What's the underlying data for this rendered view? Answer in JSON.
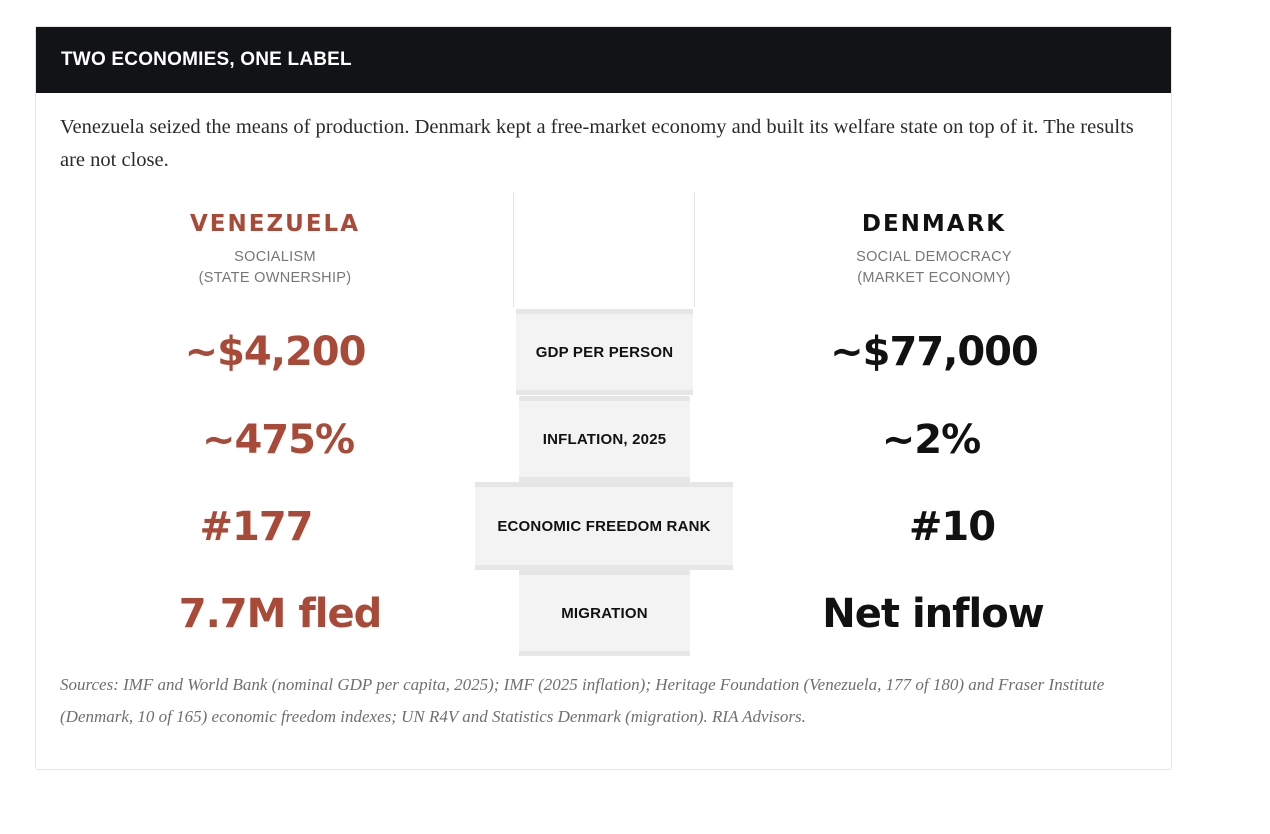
{
  "header": {
    "title": "TWO ECONOMIES, ONE LABEL"
  },
  "intro": "Venezuela seized the means of production. Denmark kept a free-market economy and built its welfare state on top of it. The results are not close.",
  "left": {
    "country": "VENEZUELA",
    "system_line1": "SOCIALISM",
    "system_line2": "(STATE OWNERSHIP)",
    "color": "#a94a38"
  },
  "right": {
    "country": "DENMARK",
    "system_line1": "SOCIAL DEMOCRACY",
    "system_line2": "(MARKET ECONOMY)",
    "color": "#111111"
  },
  "rows": [
    {
      "label": "GDP PER PERSON",
      "left": "~$4,200",
      "right": "~$77,000"
    },
    {
      "label": "INFLATION, 2025",
      "left": "~475%",
      "right": "~2%"
    },
    {
      "label": "ECONOMIC FREEDOM RANK",
      "left": "#177",
      "right": "#10"
    },
    {
      "label": "MIGRATION",
      "left": "7.7M fled",
      "right": "Net inflow"
    }
  ],
  "sources": "Sources: IMF and World Bank (nominal GDP per capita, 2025); IMF (2025 inflation); Heritage Foundation (Venezuela, 177 of 180) and Fraser Institute (Denmark, 10 of 165) economic freedom indexes; UN R4V and Statistics Denmark (migration). RIA Advisors."
}
